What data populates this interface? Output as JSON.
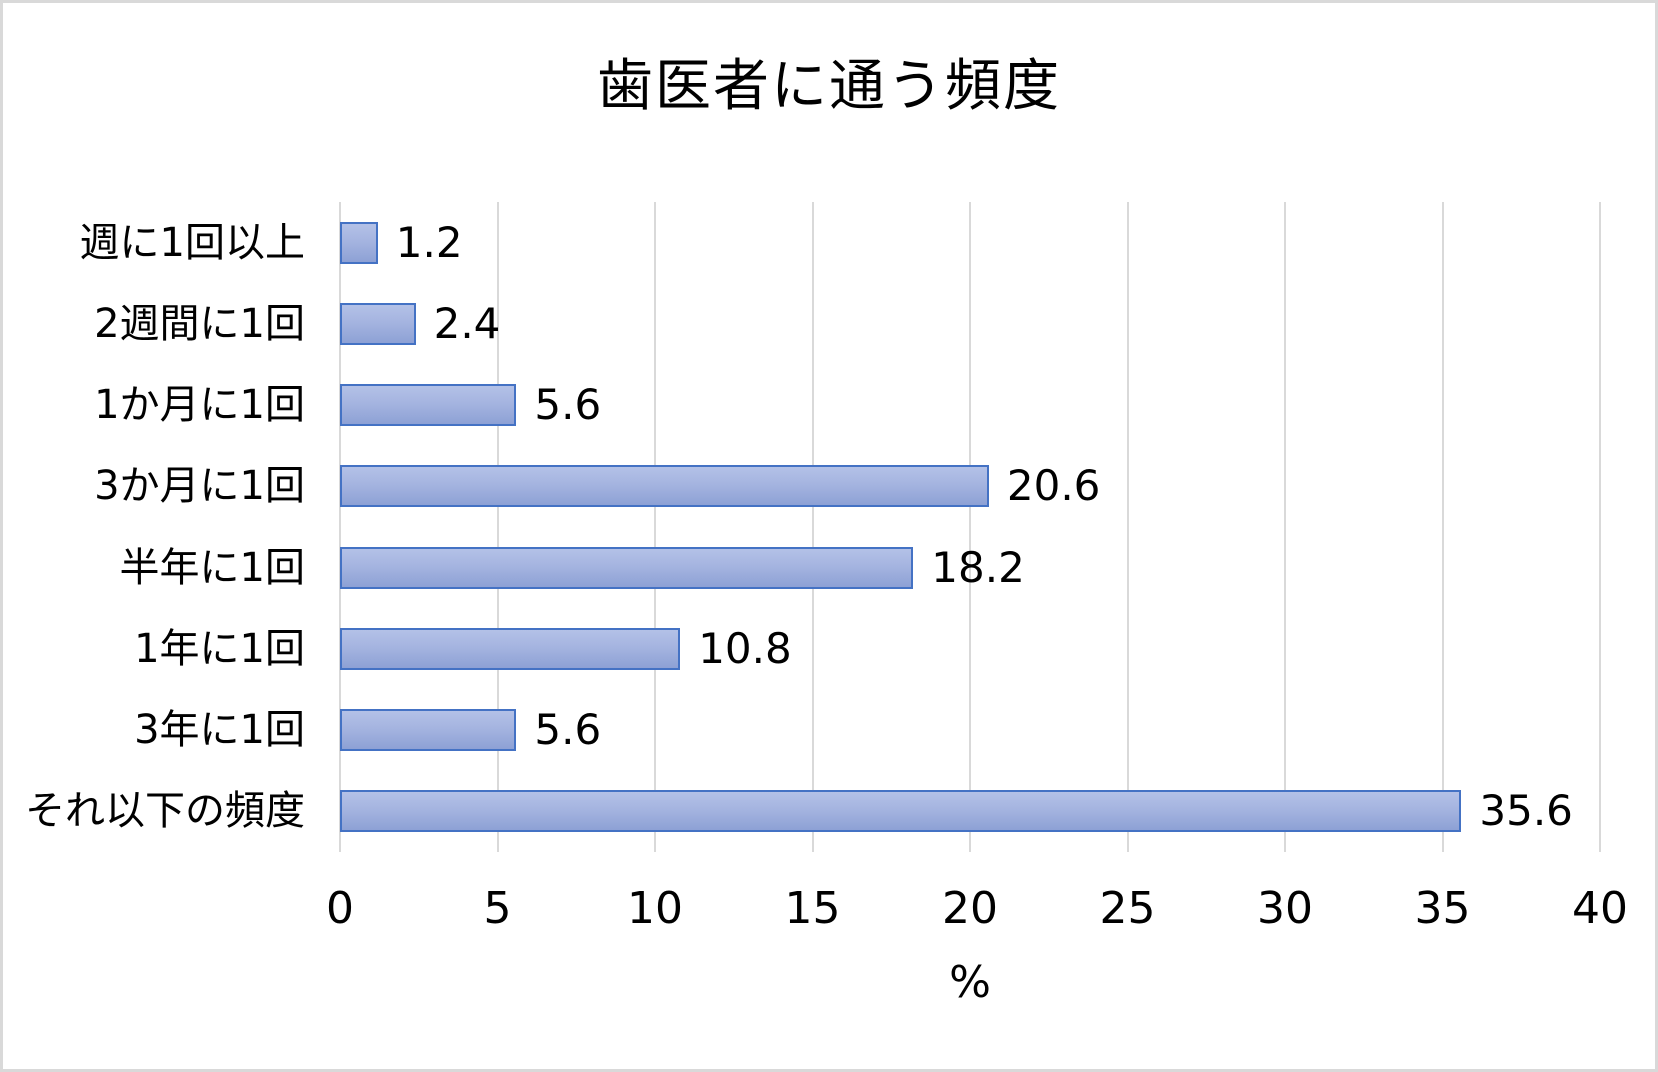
{
  "chart_data": {
    "type": "bar",
    "orientation": "horizontal",
    "title": "歯医者に通う頻度",
    "categories": [
      "週に1回以上",
      "2週間に1回",
      "1か月に1回",
      "3か月に1回",
      "半年に1回",
      "1年に1回",
      "3年に1回",
      "それ以下の頻度"
    ],
    "values": [
      1.2,
      2.4,
      5.6,
      20.6,
      18.2,
      10.8,
      5.6,
      35.6
    ],
    "value_labels": [
      "1.2",
      "2.4",
      "5.6",
      "20.6",
      "18.2",
      "10.8",
      "5.6",
      "35.6"
    ],
    "xlabel": "%",
    "ylabel": "",
    "xlim": [
      0,
      40
    ],
    "x_ticks": [
      "0",
      "5",
      "10",
      "15",
      "20",
      "25",
      "30",
      "35",
      "40"
    ],
    "grid": true,
    "legend": false,
    "colors": {
      "bar_fill_top": "#b3c1e7",
      "bar_fill_bottom": "#8da1d5",
      "bar_border": "#4472c4",
      "gridline": "#d9d9d9",
      "text": "#000000",
      "frame_border": "#d9d9d9",
      "background": "#ffffff"
    }
  }
}
